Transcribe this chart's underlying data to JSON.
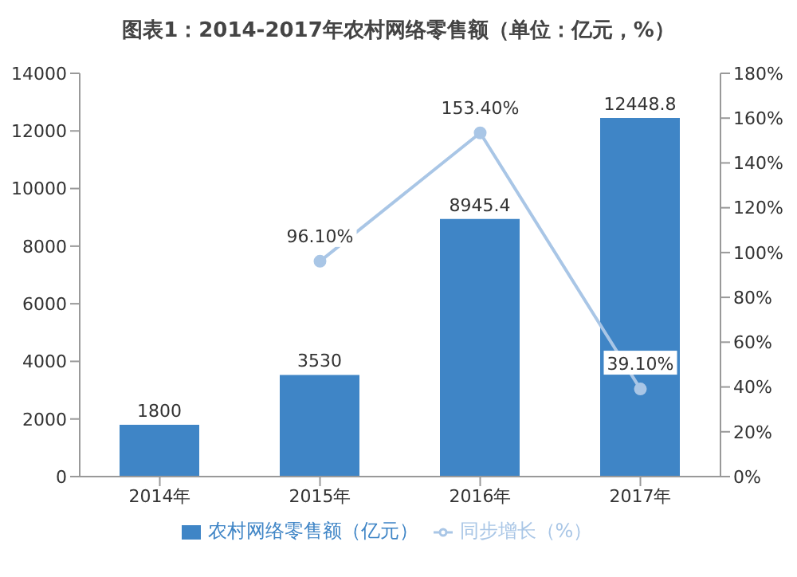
{
  "chart_data": {
    "type": "bar",
    "title": "图表1：2014-2017年农村网络零售额（单位：亿元，%）",
    "categories": [
      "2014年",
      "2015年",
      "2016年",
      "2017年"
    ],
    "series": [
      {
        "name": "农村网络零售额（亿元）",
        "color": "#3f85c6",
        "values": [
          1800,
          3530,
          8945.4,
          12448.8
        ],
        "value_labels": [
          "1800",
          "3530",
          "8945.4",
          "12448.8"
        ]
      },
      {
        "name": "同步增长（%）",
        "type": "line",
        "axis": "y2",
        "color": "#a9c6e6",
        "values": [
          null,
          96.1,
          153.4,
          39.1
        ],
        "value_labels": [
          null,
          "96.10%",
          "153.40%",
          "39.10%"
        ]
      }
    ],
    "ylim": [
      0,
      14000
    ],
    "yticks": [
      0,
      2000,
      4000,
      6000,
      8000,
      10000,
      12000,
      14000
    ],
    "y2lim": [
      0,
      180
    ],
    "y2ticks": [
      {
        "value": 0,
        "label": "0%"
      },
      {
        "value": 20,
        "label": "20%"
      },
      {
        "value": 40,
        "label": "40%"
      },
      {
        "value": 60,
        "label": "60%"
      },
      {
        "value": 80,
        "label": "80%"
      },
      {
        "value": 100,
        "label": "100%"
      },
      {
        "value": 120,
        "label": "120%"
      },
      {
        "value": 140,
        "label": "140%"
      },
      {
        "value": 160,
        "label": "160%"
      },
      {
        "value": 180,
        "label": "180%"
      }
    ],
    "legend": "bottom",
    "marker": "circle",
    "grid": false
  }
}
